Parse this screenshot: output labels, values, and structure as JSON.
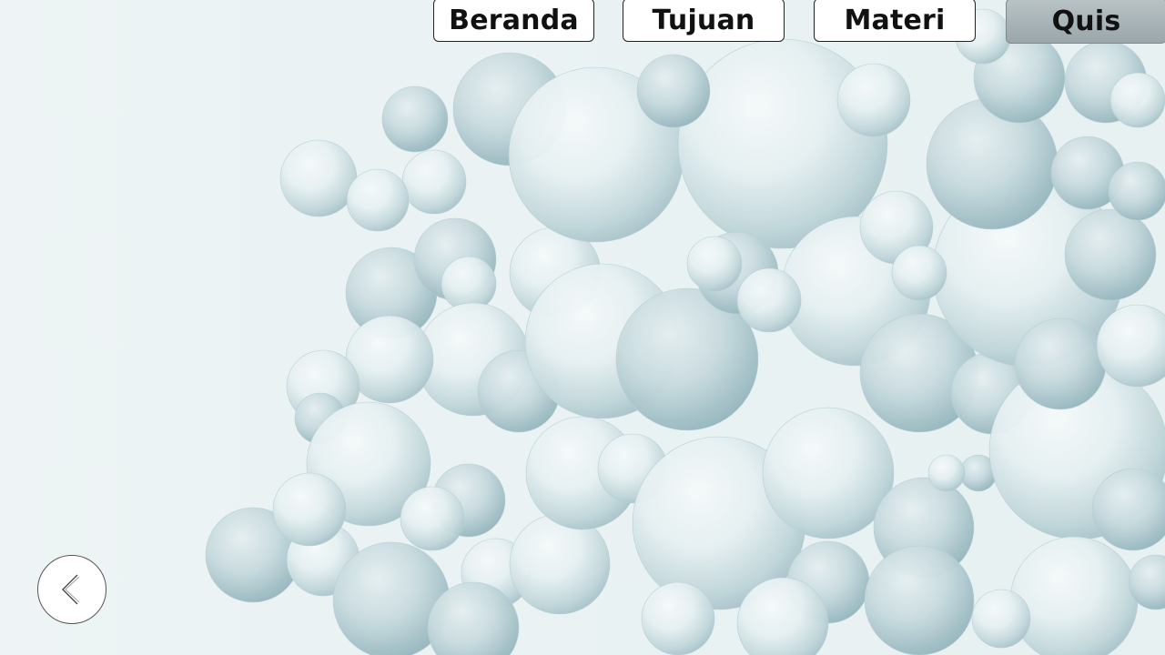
{
  "nav": {
    "items": [
      {
        "label": "Beranda",
        "active": false
      },
      {
        "label": "Tujuan",
        "active": false
      },
      {
        "label": "Materi",
        "active": false
      },
      {
        "label": "Quis",
        "active": true
      }
    ]
  },
  "back_button": {
    "icon": "chevron-left-icon"
  },
  "colors": {
    "background": "#eaf2f3",
    "sphere_light": "#f4f9fa",
    "sphere_shadow": "#a9c6cc",
    "active_nav": "#a3aeb2"
  }
}
